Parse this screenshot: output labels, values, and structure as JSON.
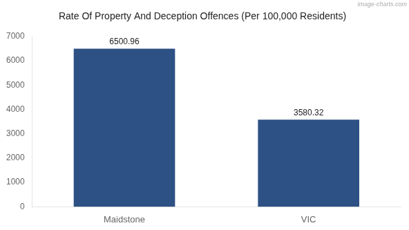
{
  "chart_data": {
    "type": "bar",
    "title": "Rate Of Property And Deception Offences (Per 100,000 Residents)",
    "categories": [
      "Maidstone",
      "VIC"
    ],
    "values": [
      6500.96,
      3580.32
    ],
    "color": "#2e5185",
    "ylim": [
      0,
      7000
    ],
    "yticks": [
      0,
      1000,
      2000,
      3000,
      4000,
      5000,
      6000,
      7000
    ],
    "grid": false,
    "data_labels": true,
    "annotations": [
      {
        "text": "image-charts.com"
      }
    ]
  }
}
